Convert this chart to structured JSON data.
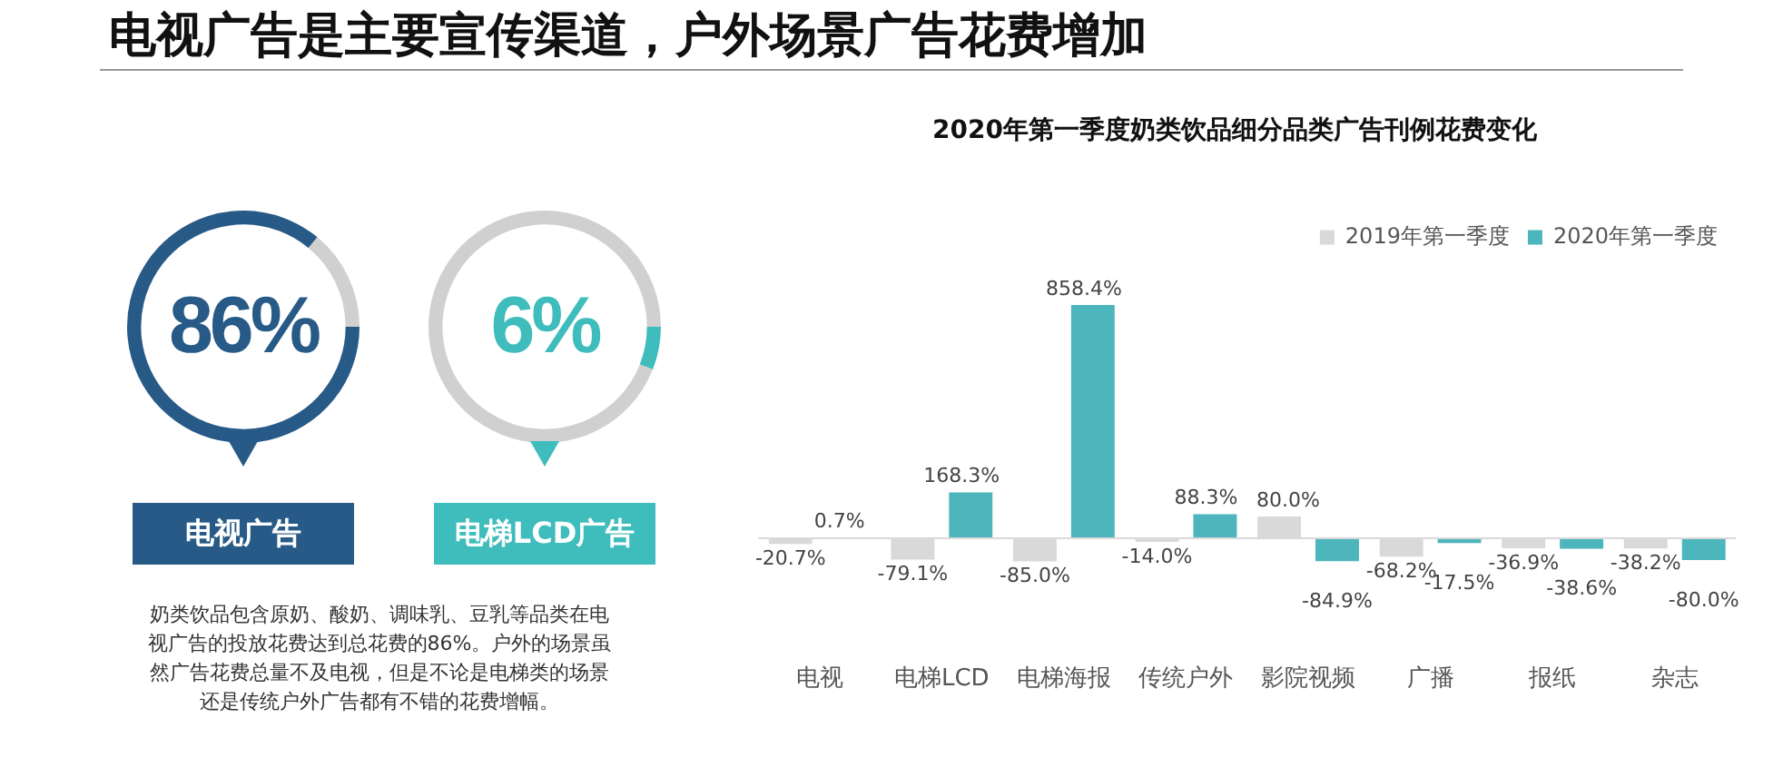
{
  "chart_data": [
    {
      "type": "donut",
      "title": "电视广告",
      "categories": [
        null,
        null
      ],
      "values": [
        86,
        14
      ],
      "colors": [
        "#285a87",
        "#d0d0d0"
      ],
      "annotations": [
        "86%"
      ]
    },
    {
      "type": "donut",
      "title": "电梯LCD广告",
      "categories": [
        null,
        null
      ],
      "values": [
        6,
        94
      ],
      "colors": [
        "#3fbcbc",
        "#d0d0d0"
      ],
      "annotations": [
        "6%"
      ]
    },
    {
      "type": "bar",
      "title": "2020年第一季度奶类饮品细分品类广告刊例花费变化",
      "categories": [
        "电视",
        "电梯LCD",
        "电梯海报",
        "传统户外",
        "影院视频",
        "广播",
        "报纸",
        "杂志"
      ],
      "series": [
        {
          "name": "2019年第一季度",
          "color": "#d9d9d9",
          "values": [
            -20.7,
            -79.1,
            -85.0,
            -14.0,
            80.0,
            -68.2,
            -36.9,
            -38.2
          ],
          "value_labels": [
            "-20.7%",
            "-79.1%",
            "-85.0%",
            "-14.0%",
            "80.0%",
            "-68.2%",
            "-36.9%",
            "-38.2%"
          ]
        },
        {
          "name": "2020年第一季度",
          "color": "#4db6bc",
          "values": [
            0.7,
            168.3,
            858.4,
            88.3,
            -84.9,
            -17.5,
            -38.6,
            -80.0
          ],
          "value_labels": [
            "0.7%",
            "168.3%",
            "858.4%",
            "88.3%",
            "-84.9%",
            "-17.5%",
            "-38.6%",
            "-80.0%"
          ]
        }
      ],
      "legend": "top right",
      "grid": false,
      "annotations": [
        "电视广告是主要宣传渠道，户外场景广告花费增加",
        "奶类饮品包含原奶、酸奶、调味乳、豆乳等品类在电视广告的投放花费达到总花费的86%。户外的场景虽然广告花费总量不及电视，但是不论是电梯类的场景还是传统户外广告都有不错的花费增幅。"
      ]
    }
  ]
}
